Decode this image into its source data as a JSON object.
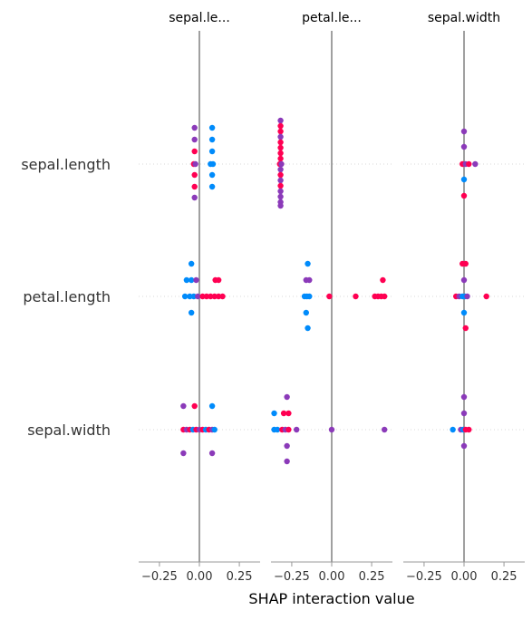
{
  "chart_data": {
    "type": "scatter",
    "title": "",
    "xlabel": "SHAP interaction value",
    "xlim": [
      -0.38,
      0.38
    ],
    "xticks": [
      -0.25,
      0.0,
      0.25
    ],
    "xtick_labels": [
      "−0.25",
      "0.00",
      "0.25"
    ],
    "columns": [
      {
        "title": "sepal.le..."
      },
      {
        "title": "petal.le..."
      },
      {
        "title": "sepal.width"
      }
    ],
    "rows": [
      {
        "label": "sepal.length"
      },
      {
        "label": "petal.length"
      },
      {
        "label": "sepal.width"
      }
    ],
    "colors": {
      "low": "#008bfb",
      "mid": "#8b3ab9",
      "high": "#ff0052",
      "axis": "#999999",
      "zero_line": "#808080",
      "row_line": "#cccccc"
    },
    "points": [
      {
        "col": 0,
        "row": 0,
        "x": -0.03,
        "dy": -40,
        "c": "mid"
      },
      {
        "col": 0,
        "row": 0,
        "x": 0.08,
        "dy": -40,
        "c": "low"
      },
      {
        "col": 0,
        "row": 0,
        "x": -0.03,
        "dy": -27,
        "c": "mid"
      },
      {
        "col": 0,
        "row": 0,
        "x": 0.08,
        "dy": -27,
        "c": "low"
      },
      {
        "col": 0,
        "row": 0,
        "x": -0.03,
        "dy": -14,
        "c": "high"
      },
      {
        "col": 0,
        "row": 0,
        "x": 0.08,
        "dy": -14,
        "c": "low"
      },
      {
        "col": 0,
        "row": 0,
        "x": -0.035,
        "dy": 0,
        "c": "high"
      },
      {
        "col": 0,
        "row": 0,
        "x": -0.025,
        "dy": 0,
        "c": "mid"
      },
      {
        "col": 0,
        "row": 0,
        "x": 0.07,
        "dy": 0,
        "c": "low"
      },
      {
        "col": 0,
        "row": 0,
        "x": 0.085,
        "dy": 0,
        "c": "low"
      },
      {
        "col": 0,
        "row": 0,
        "x": -0.03,
        "dy": 12,
        "c": "high"
      },
      {
        "col": 0,
        "row": 0,
        "x": 0.08,
        "dy": 12,
        "c": "low"
      },
      {
        "col": 0,
        "row": 0,
        "x": -0.03,
        "dy": 25,
        "c": "high"
      },
      {
        "col": 0,
        "row": 0,
        "x": 0.08,
        "dy": 25,
        "c": "low"
      },
      {
        "col": 0,
        "row": 0,
        "x": -0.03,
        "dy": 37,
        "c": "mid"
      },
      {
        "col": 1,
        "row": 0,
        "x": -0.32,
        "dy": -48,
        "c": "mid"
      },
      {
        "col": 1,
        "row": 0,
        "x": -0.32,
        "dy": -42,
        "c": "high"
      },
      {
        "col": 1,
        "row": 0,
        "x": -0.32,
        "dy": -36,
        "c": "high"
      },
      {
        "col": 1,
        "row": 0,
        "x": -0.32,
        "dy": -30,
        "c": "mid"
      },
      {
        "col": 1,
        "row": 0,
        "x": -0.32,
        "dy": -24,
        "c": "high"
      },
      {
        "col": 1,
        "row": 0,
        "x": -0.32,
        "dy": -18,
        "c": "high"
      },
      {
        "col": 1,
        "row": 0,
        "x": -0.32,
        "dy": -12,
        "c": "high"
      },
      {
        "col": 1,
        "row": 0,
        "x": -0.32,
        "dy": -6,
        "c": "high"
      },
      {
        "col": 1,
        "row": 0,
        "x": -0.325,
        "dy": 0,
        "c": "high"
      },
      {
        "col": 1,
        "row": 0,
        "x": -0.315,
        "dy": 0,
        "c": "mid"
      },
      {
        "col": 1,
        "row": 0,
        "x": -0.32,
        "dy": 6,
        "c": "mid"
      },
      {
        "col": 1,
        "row": 0,
        "x": -0.32,
        "dy": 12,
        "c": "high"
      },
      {
        "col": 1,
        "row": 0,
        "x": -0.32,
        "dy": 18,
        "c": "mid"
      },
      {
        "col": 1,
        "row": 0,
        "x": -0.32,
        "dy": 24,
        "c": "high"
      },
      {
        "col": 1,
        "row": 0,
        "x": -0.32,
        "dy": 30,
        "c": "mid"
      },
      {
        "col": 1,
        "row": 0,
        "x": -0.32,
        "dy": 36,
        "c": "mid"
      },
      {
        "col": 1,
        "row": 0,
        "x": -0.32,
        "dy": 42,
        "c": "mid"
      },
      {
        "col": 1,
        "row": 0,
        "x": -0.32,
        "dy": 46,
        "c": "mid"
      },
      {
        "col": 2,
        "row": 0,
        "x": 0.0,
        "dy": -36,
        "c": "mid"
      },
      {
        "col": 2,
        "row": 0,
        "x": 0.0,
        "dy": -19,
        "c": "mid"
      },
      {
        "col": 2,
        "row": 0,
        "x": -0.01,
        "dy": 0,
        "c": "high"
      },
      {
        "col": 2,
        "row": 0,
        "x": 0.01,
        "dy": 0,
        "c": "mid"
      },
      {
        "col": 2,
        "row": 0,
        "x": 0.03,
        "dy": 0,
        "c": "high"
      },
      {
        "col": 2,
        "row": 0,
        "x": 0.07,
        "dy": 0,
        "c": "mid"
      },
      {
        "col": 2,
        "row": 0,
        "x": 0.0,
        "dy": 17,
        "c": "low"
      },
      {
        "col": 2,
        "row": 0,
        "x": 0.0,
        "dy": 35,
        "c": "high"
      },
      {
        "col": 0,
        "row": 1,
        "x": -0.05,
        "dy": -36,
        "c": "low"
      },
      {
        "col": 0,
        "row": 1,
        "x": -0.08,
        "dy": -18,
        "c": "low"
      },
      {
        "col": 0,
        "row": 1,
        "x": -0.05,
        "dy": -18,
        "c": "low"
      },
      {
        "col": 0,
        "row": 1,
        "x": -0.02,
        "dy": -18,
        "c": "mid"
      },
      {
        "col": 0,
        "row": 1,
        "x": 0.1,
        "dy": -18,
        "c": "high"
      },
      {
        "col": 0,
        "row": 1,
        "x": 0.12,
        "dy": -18,
        "c": "high"
      },
      {
        "col": 0,
        "row": 1,
        "x": -0.09,
        "dy": 0,
        "c": "low"
      },
      {
        "col": 0,
        "row": 1,
        "x": -0.06,
        "dy": 0,
        "c": "low"
      },
      {
        "col": 0,
        "row": 1,
        "x": -0.035,
        "dy": 0,
        "c": "low"
      },
      {
        "col": 0,
        "row": 1,
        "x": -0.01,
        "dy": 0,
        "c": "mid"
      },
      {
        "col": 0,
        "row": 1,
        "x": 0.02,
        "dy": 0,
        "c": "high"
      },
      {
        "col": 0,
        "row": 1,
        "x": 0.045,
        "dy": 0,
        "c": "high"
      },
      {
        "col": 0,
        "row": 1,
        "x": 0.07,
        "dy": 0,
        "c": "high"
      },
      {
        "col": 0,
        "row": 1,
        "x": 0.095,
        "dy": 0,
        "c": "high"
      },
      {
        "col": 0,
        "row": 1,
        "x": 0.12,
        "dy": 0,
        "c": "high"
      },
      {
        "col": 0,
        "row": 1,
        "x": 0.145,
        "dy": 0,
        "c": "high"
      },
      {
        "col": 0,
        "row": 1,
        "x": -0.05,
        "dy": 18,
        "c": "low"
      },
      {
        "col": 1,
        "row": 1,
        "x": -0.15,
        "dy": -36,
        "c": "low"
      },
      {
        "col": 1,
        "row": 1,
        "x": -0.16,
        "dy": -18,
        "c": "mid"
      },
      {
        "col": 1,
        "row": 1,
        "x": -0.14,
        "dy": -18,
        "c": "mid"
      },
      {
        "col": 1,
        "row": 1,
        "x": 0.32,
        "dy": -18,
        "c": "high"
      },
      {
        "col": 1,
        "row": 1,
        "x": -0.17,
        "dy": 0,
        "c": "low"
      },
      {
        "col": 1,
        "row": 1,
        "x": -0.155,
        "dy": 0,
        "c": "low"
      },
      {
        "col": 1,
        "row": 1,
        "x": -0.14,
        "dy": 0,
        "c": "low"
      },
      {
        "col": 1,
        "row": 1,
        "x": -0.015,
        "dy": 0,
        "c": "high"
      },
      {
        "col": 1,
        "row": 1,
        "x": 0.15,
        "dy": 0,
        "c": "high"
      },
      {
        "col": 1,
        "row": 1,
        "x": 0.27,
        "dy": 0,
        "c": "high"
      },
      {
        "col": 1,
        "row": 1,
        "x": 0.29,
        "dy": 0,
        "c": "high"
      },
      {
        "col": 1,
        "row": 1,
        "x": 0.31,
        "dy": 0,
        "c": "high"
      },
      {
        "col": 1,
        "row": 1,
        "x": 0.33,
        "dy": 0,
        "c": "high"
      },
      {
        "col": 1,
        "row": 1,
        "x": -0.16,
        "dy": 18,
        "c": "low"
      },
      {
        "col": 1,
        "row": 1,
        "x": -0.15,
        "dy": 35,
        "c": "low"
      },
      {
        "col": 2,
        "row": 1,
        "x": -0.01,
        "dy": -36,
        "c": "high"
      },
      {
        "col": 2,
        "row": 1,
        "x": 0.01,
        "dy": -36,
        "c": "high"
      },
      {
        "col": 2,
        "row": 1,
        "x": 0.0,
        "dy": -18,
        "c": "mid"
      },
      {
        "col": 2,
        "row": 1,
        "x": -0.05,
        "dy": 0,
        "c": "high"
      },
      {
        "col": 2,
        "row": 1,
        "x": -0.03,
        "dy": 0,
        "c": "mid"
      },
      {
        "col": 2,
        "row": 1,
        "x": -0.01,
        "dy": 0,
        "c": "low"
      },
      {
        "col": 2,
        "row": 1,
        "x": 0.005,
        "dy": 0,
        "c": "low"
      },
      {
        "col": 2,
        "row": 1,
        "x": 0.02,
        "dy": 0,
        "c": "mid"
      },
      {
        "col": 2,
        "row": 1,
        "x": 0.14,
        "dy": 0,
        "c": "high"
      },
      {
        "col": 2,
        "row": 1,
        "x": 0.0,
        "dy": 18,
        "c": "low"
      },
      {
        "col": 2,
        "row": 1,
        "x": 0.01,
        "dy": 35,
        "c": "high"
      },
      {
        "col": 0,
        "row": 2,
        "x": -0.1,
        "dy": -26,
        "c": "mid"
      },
      {
        "col": 0,
        "row": 2,
        "x": -0.03,
        "dy": -26,
        "c": "high"
      },
      {
        "col": 0,
        "row": 2,
        "x": 0.08,
        "dy": -26,
        "c": "low"
      },
      {
        "col": 0,
        "row": 2,
        "x": -0.1,
        "dy": 0,
        "c": "high"
      },
      {
        "col": 0,
        "row": 2,
        "x": -0.08,
        "dy": 0,
        "c": "mid"
      },
      {
        "col": 0,
        "row": 2,
        "x": -0.06,
        "dy": 0,
        "c": "high"
      },
      {
        "col": 0,
        "row": 2,
        "x": -0.04,
        "dy": 0,
        "c": "low"
      },
      {
        "col": 0,
        "row": 2,
        "x": -0.02,
        "dy": 0,
        "c": "high"
      },
      {
        "col": 0,
        "row": 2,
        "x": 0.0,
        "dy": 0,
        "c": "mid"
      },
      {
        "col": 0,
        "row": 2,
        "x": 0.02,
        "dy": 0,
        "c": "high"
      },
      {
        "col": 0,
        "row": 2,
        "x": 0.04,
        "dy": 0,
        "c": "low"
      },
      {
        "col": 0,
        "row": 2,
        "x": 0.06,
        "dy": 0,
        "c": "high"
      },
      {
        "col": 0,
        "row": 2,
        "x": 0.08,
        "dy": 0,
        "c": "mid"
      },
      {
        "col": 0,
        "row": 2,
        "x": 0.095,
        "dy": 0,
        "c": "low"
      },
      {
        "col": 0,
        "row": 2,
        "x": -0.1,
        "dy": 26,
        "c": "mid"
      },
      {
        "col": 0,
        "row": 2,
        "x": 0.08,
        "dy": 26,
        "c": "mid"
      },
      {
        "col": 1,
        "row": 2,
        "x": -0.28,
        "dy": -36,
        "c": "mid"
      },
      {
        "col": 1,
        "row": 2,
        "x": -0.36,
        "dy": -18,
        "c": "low"
      },
      {
        "col": 1,
        "row": 2,
        "x": -0.3,
        "dy": -18,
        "c": "high"
      },
      {
        "col": 1,
        "row": 2,
        "x": -0.27,
        "dy": -18,
        "c": "high"
      },
      {
        "col": 1,
        "row": 2,
        "x": -0.36,
        "dy": 0,
        "c": "low"
      },
      {
        "col": 1,
        "row": 2,
        "x": -0.34,
        "dy": 0,
        "c": "low"
      },
      {
        "col": 1,
        "row": 2,
        "x": -0.31,
        "dy": 0,
        "c": "high"
      },
      {
        "col": 1,
        "row": 2,
        "x": -0.29,
        "dy": 0,
        "c": "mid"
      },
      {
        "col": 1,
        "row": 2,
        "x": -0.27,
        "dy": 0,
        "c": "high"
      },
      {
        "col": 1,
        "row": 2,
        "x": -0.22,
        "dy": 0,
        "c": "mid"
      },
      {
        "col": 1,
        "row": 2,
        "x": 0.0,
        "dy": 0,
        "c": "mid"
      },
      {
        "col": 1,
        "row": 2,
        "x": 0.33,
        "dy": 0,
        "c": "mid"
      },
      {
        "col": 1,
        "row": 2,
        "x": -0.28,
        "dy": 18,
        "c": "mid"
      },
      {
        "col": 1,
        "row": 2,
        "x": -0.28,
        "dy": 35,
        "c": "mid"
      },
      {
        "col": 2,
        "row": 2,
        "x": 0.0,
        "dy": -36,
        "c": "mid"
      },
      {
        "col": 2,
        "row": 2,
        "x": 0.0,
        "dy": -18,
        "c": "mid"
      },
      {
        "col": 2,
        "row": 2,
        "x": -0.07,
        "dy": 0,
        "c": "low"
      },
      {
        "col": 2,
        "row": 2,
        "x": -0.02,
        "dy": 0,
        "c": "mid"
      },
      {
        "col": 2,
        "row": 2,
        "x": -0.005,
        "dy": 0,
        "c": "low"
      },
      {
        "col": 2,
        "row": 2,
        "x": 0.01,
        "dy": 0,
        "c": "high"
      },
      {
        "col": 2,
        "row": 2,
        "x": 0.03,
        "dy": 0,
        "c": "high"
      },
      {
        "col": 2,
        "row": 2,
        "x": 0.0,
        "dy": 18,
        "c": "mid"
      }
    ]
  }
}
